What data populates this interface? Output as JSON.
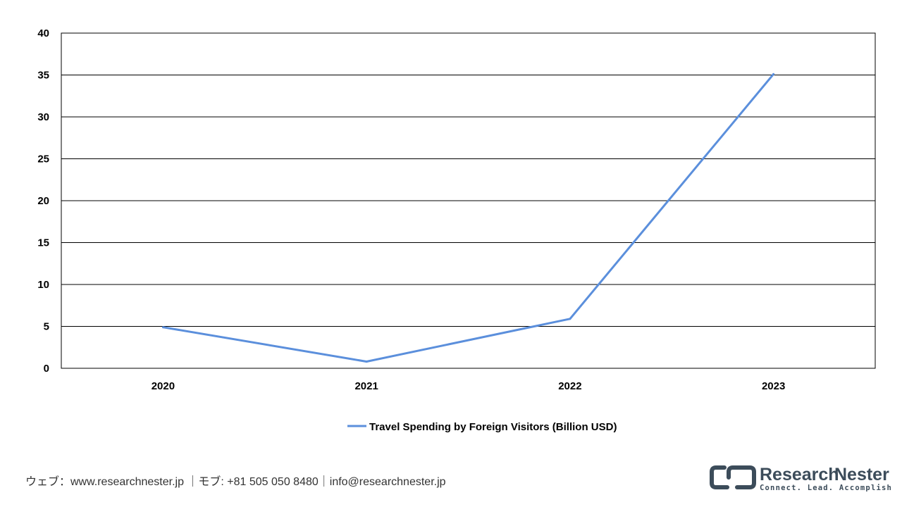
{
  "chart_data": {
    "type": "line",
    "title": "",
    "xlabel": "",
    "ylabel": "",
    "categories": [
      "2020",
      "2021",
      "2022",
      "2023"
    ],
    "series": [
      {
        "name": "Travel Spending by Foreign Visitors (Billion USD)",
        "values": [
          4.9,
          0.8,
          5.9,
          35.1
        ],
        "color": "#5b8fdc"
      }
    ],
    "ylim": [
      0,
      40
    ],
    "yticks": [
      0,
      5,
      10,
      15,
      20,
      25,
      30,
      35,
      40
    ],
    "grid": true,
    "legend": "bottom-center"
  },
  "footer": {
    "contact": "ウェブ：www.researchnester.jp ｜モブ: +81 505 050 8480｜info@researchnester.jp"
  },
  "logo": {
    "brand_a": "Research",
    "brand_b": "Nester",
    "tagline": "Connect. Lead. Accomplish",
    "color": "#3c4c5a"
  }
}
